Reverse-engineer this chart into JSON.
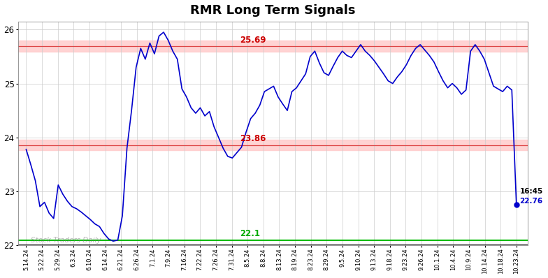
{
  "title": "RMR Long Term Signals",
  "ylim": [
    22.0,
    26.15
  ],
  "yticks": [
    22,
    23,
    24,
    25,
    26
  ],
  "line_color": "#0000cc",
  "upper_band": 25.69,
  "lower_band": 23.86,
  "support_line": 22.1,
  "annotation_upper": "25.69",
  "annotation_lower": "23.86",
  "annotation_support": "22.1",
  "annotation_end_time": "16:45",
  "annotation_end_price": "22.76",
  "watermark": "Stock Traders Daily",
  "x_labels": [
    "5.14.24",
    "5.22.24",
    "5.29.24",
    "6.3.24",
    "6.10.24",
    "6.14.24",
    "6.21.24",
    "6.26.24",
    "7.1.24",
    "7.9.24",
    "7.16.24",
    "7.22.24",
    "7.26.24",
    "7.31.24",
    "8.5.24",
    "8.8.24",
    "8.13.24",
    "8.19.24",
    "8.23.24",
    "8.29.24",
    "9.5.24",
    "9.10.24",
    "9.13.24",
    "9.18.24",
    "9.23.24",
    "9.26.24",
    "10.1.24",
    "10.4.24",
    "10.9.24",
    "10.14.24",
    "10.18.24",
    "10.23.24"
  ],
  "y_vals": [
    23.78,
    23.5,
    23.2,
    22.72,
    22.8,
    22.6,
    22.5,
    23.12,
    22.95,
    22.82,
    22.72,
    22.68,
    22.62,
    22.55,
    22.48,
    22.4,
    22.35,
    22.22,
    22.12,
    22.08,
    22.1,
    22.55,
    23.8,
    24.5,
    25.3,
    25.65,
    25.45,
    25.75,
    25.55,
    25.88,
    25.95,
    25.8,
    25.6,
    25.45,
    24.9,
    24.75,
    24.55,
    24.45,
    24.55,
    24.4,
    24.48,
    24.2,
    24.0,
    23.8,
    23.65,
    23.62,
    23.72,
    23.82,
    24.1,
    24.35,
    24.45,
    24.6,
    24.85,
    24.9,
    24.95,
    24.75,
    24.62,
    24.5,
    24.85,
    24.92,
    25.05,
    25.18,
    25.5,
    25.6,
    25.38,
    25.2,
    25.15,
    25.32,
    25.48,
    25.6,
    25.52,
    25.48,
    25.6,
    25.72,
    25.6,
    25.52,
    25.42,
    25.3,
    25.18,
    25.05,
    25.0,
    25.12,
    25.22,
    25.35,
    25.52,
    25.65,
    25.72,
    25.62,
    25.52,
    25.4,
    25.22,
    25.05,
    24.92,
    25.0,
    24.92,
    24.8,
    24.88,
    25.6,
    25.72,
    25.6,
    25.45,
    25.2,
    24.95,
    24.9,
    24.85,
    24.95,
    24.88,
    22.76
  ]
}
